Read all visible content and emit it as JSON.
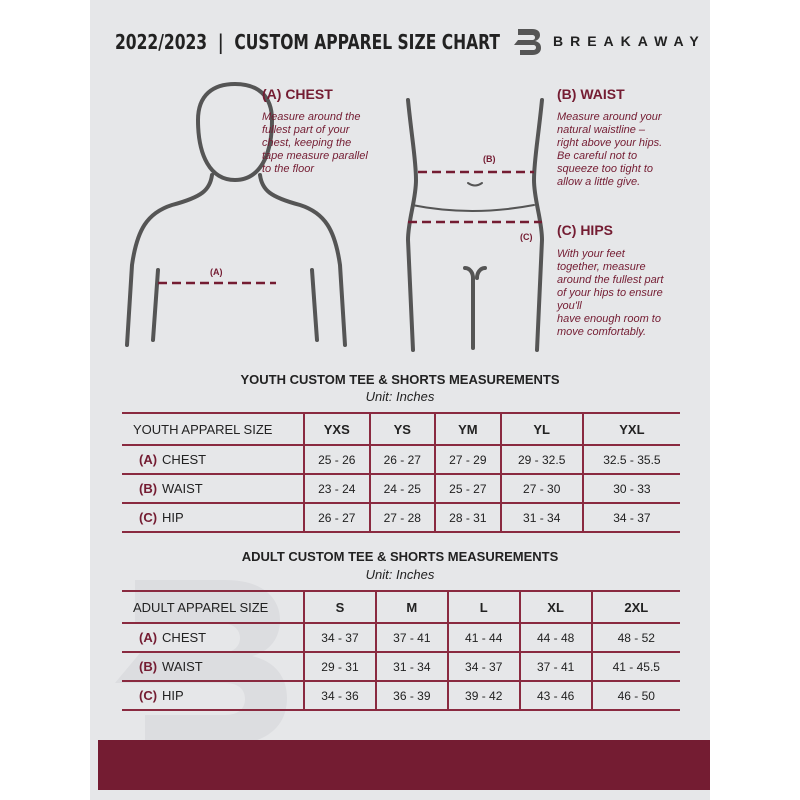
{
  "header": {
    "title": "2022/2023  |  CUSTOM APPAREL SIZE CHART",
    "brand": "BREAKAWAY"
  },
  "guide": {
    "chest": {
      "title": "(A) CHEST",
      "text": [
        "Measure around the",
        "fullest part of your",
        "chest, keeping the",
        "tape measure parallel",
        "to the floor"
      ],
      "marker": "(A)"
    },
    "waist": {
      "title": "(B) WAIST",
      "text": [
        "Measure around your",
        "natural waistline –",
        "right above your hips.",
        "Be careful not to",
        "squeeze too tight to",
        "allow a little give."
      ],
      "marker": "(B)"
    },
    "hips": {
      "title": "(C) HIPS",
      "text": [
        "With your feet",
        "together, measure",
        "around the fullest part",
        "of your hips to ensure",
        "you'll",
        "have enough room to",
        "move comfortably."
      ],
      "marker": "(C)"
    }
  },
  "youth": {
    "title": "YOUTH CUSTOM TEE & SHORTS MEASUREMENTS",
    "unit": "Unit: Inches",
    "header": "YOUTH APPAREL SIZE",
    "sizes": [
      "YXS",
      "YS",
      "YM",
      "YL",
      "YXL"
    ],
    "rows": [
      {
        "key": "(A)",
        "label": "CHEST",
        "values": [
          "25 - 26",
          "26 - 27",
          "27 - 29",
          "29 - 32.5",
          "32.5 - 35.5"
        ]
      },
      {
        "key": "(B)",
        "label": "WAIST",
        "values": [
          "23 - 24",
          "24 - 25",
          "25 - 27",
          "27 - 30",
          "30 - 33"
        ]
      },
      {
        "key": "(C)",
        "label": "HIP",
        "values": [
          "26 - 27",
          "27 - 28",
          "28 - 31",
          "31 - 34",
          "34 - 37"
        ]
      }
    ]
  },
  "adult": {
    "title": "ADULT CUSTOM TEE & SHORTS MEASUREMENTS",
    "unit": "Unit: Inches",
    "header": "ADULT APPAREL SIZE",
    "sizes": [
      "S",
      "M",
      "L",
      "XL",
      "2XL"
    ],
    "rows": [
      {
        "key": "(A)",
        "label": "CHEST",
        "values": [
          "34 - 37",
          "37 - 41",
          "41 - 44",
          "44 - 48",
          "48 - 52"
        ]
      },
      {
        "key": "(B)",
        "label": "WAIST",
        "values": [
          "29 - 31",
          "31 - 34",
          "34 - 37",
          "37 - 41",
          "41 - 45.5"
        ]
      },
      {
        "key": "(C)",
        "label": "HIP",
        "values": [
          "34 - 36",
          "36 - 39",
          "39 - 42",
          "43 - 46",
          "46 - 50"
        ]
      }
    ]
  },
  "colors": {
    "accent": "#741c32",
    "background": "#e6e7e9"
  }
}
